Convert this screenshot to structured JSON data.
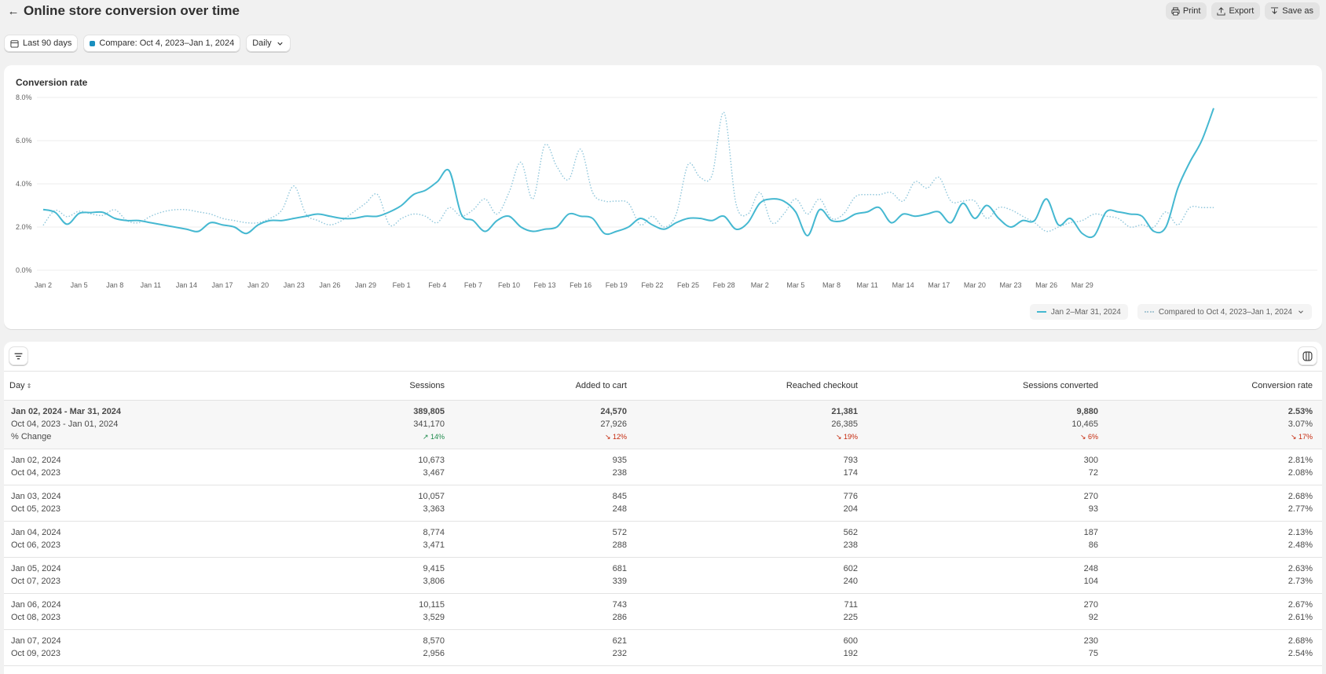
{
  "header": {
    "title": "Online store conversion over time",
    "actions": [
      {
        "label": "Print",
        "icon": "printer-icon"
      },
      {
        "label": "Export",
        "icon": "export-icon"
      },
      {
        "label": "Save as",
        "icon": "save-icon"
      }
    ]
  },
  "filters": {
    "date_range": "Last 90 days",
    "compare": "Compare: Oct 4, 2023–Jan 1, 2024",
    "granularity": "Daily"
  },
  "chart_data": {
    "type": "line",
    "title": "Conversion rate",
    "y_ticks": [
      "0.0%",
      "2.0%",
      "4.0%",
      "6.0%",
      "8.0%"
    ],
    "ylim": [
      0,
      8
    ],
    "x_ticks": [
      "Jan 2",
      "Jan 5",
      "Jan 8",
      "Jan 11",
      "Jan 14",
      "Jan 17",
      "Jan 20",
      "Jan 23",
      "Jan 26",
      "Jan 29",
      "Feb 1",
      "Feb 4",
      "Feb 7",
      "Feb 10",
      "Feb 13",
      "Feb 16",
      "Feb 19",
      "Feb 22",
      "Feb 25",
      "Feb 28",
      "Mar 2",
      "Mar 5",
      "Mar 8",
      "Mar 11",
      "Mar 14",
      "Mar 17",
      "Mar 20",
      "Mar 23",
      "Mar 26",
      "Mar 29"
    ],
    "grid": true,
    "legend_placement": "bottom-right",
    "series": [
      {
        "name": "Jan 2–Mar 31, 2024",
        "color": "#45b8d1",
        "style": "solid",
        "values": [
          2.81,
          2.68,
          2.13,
          2.63,
          2.67,
          2.68,
          2.4,
          2.3,
          2.3,
          2.2,
          2.1,
          2.0,
          1.9,
          1.8,
          2.2,
          2.1,
          2.0,
          1.7,
          2.1,
          2.3,
          2.3,
          2.4,
          2.5,
          2.6,
          2.5,
          2.4,
          2.4,
          2.5,
          2.5,
          2.7,
          3.0,
          3.5,
          3.7,
          4.1,
          4.6,
          2.6,
          2.3,
          1.8,
          2.3,
          2.5,
          2.0,
          1.8,
          1.9,
          2.0,
          2.6,
          2.5,
          2.4,
          1.7,
          1.8,
          2.0,
          2.4,
          2.1,
          1.9,
          2.2,
          2.4,
          2.4,
          2.3,
          2.5,
          1.9,
          2.2,
          3.1,
          3.3,
          3.2,
          2.7,
          1.6,
          2.8,
          2.3,
          2.3,
          2.6,
          2.7,
          2.9,
          2.2,
          2.6,
          2.5,
          2.6,
          2.7,
          2.2,
          3.1,
          2.4,
          3.0,
          2.4,
          2.0,
          2.3,
          2.3,
          3.3,
          2.1,
          2.4,
          1.7,
          1.6,
          2.7,
          2.7,
          2.6,
          2.5,
          1.8,
          2.0,
          3.8,
          5.0,
          6.0,
          7.5
        ]
      },
      {
        "name": "Compared to Oct 4, 2023–Jan 1, 2024",
        "color": "#8fc6db",
        "style": "dotted",
        "values": [
          2.08,
          2.77,
          2.48,
          2.73,
          2.61,
          2.54,
          2.8,
          2.3,
          2.2,
          2.5,
          2.7,
          2.8,
          2.8,
          2.7,
          2.6,
          2.4,
          2.3,
          2.2,
          2.2,
          2.4,
          2.8,
          3.9,
          2.6,
          2.3,
          2.1,
          2.3,
          2.7,
          3.1,
          3.5,
          2.1,
          2.4,
          2.6,
          2.5,
          2.2,
          2.9,
          2.5,
          2.8,
          3.3,
          2.6,
          3.6,
          5.0,
          3.3,
          5.8,
          4.8,
          4.2,
          5.6,
          3.6,
          3.2,
          3.2,
          3.1,
          2.1,
          2.5,
          2.0,
          2.6,
          4.9,
          4.3,
          4.4,
          7.3,
          3.1,
          2.6,
          3.6,
          2.2,
          2.6,
          3.3,
          2.6,
          3.3,
          2.4,
          2.6,
          3.4,
          3.5,
          3.5,
          3.6,
          3.2,
          4.1,
          3.8,
          4.3,
          3.2,
          3.2,
          3.2,
          2.4,
          2.9,
          2.8,
          2.5,
          2.2,
          1.8,
          2.0,
          2.2,
          2.3,
          2.6,
          2.5,
          2.4,
          2.0,
          2.1,
          2.0,
          2.7,
          2.1,
          2.9,
          2.9,
          2.9
        ]
      }
    ]
  },
  "table": {
    "columns": [
      "Day",
      "Sessions",
      "Added to cart",
      "Reached checkout",
      "Sessions converted",
      "Conversion rate"
    ],
    "summary": {
      "labels": [
        "Jan 02, 2024 - Mar 31, 2024",
        "Oct 04, 2023 - Jan 01, 2024",
        "% Change"
      ],
      "current": [
        "389,805",
        "24,570",
        "21,381",
        "9,880",
        "2.53%"
      ],
      "previous": [
        "341,170",
        "27,926",
        "26,385",
        "10,465",
        "3.07%"
      ],
      "change": [
        "↗ 14%",
        "↘ 12%",
        "↘ 19%",
        "↘ 6%",
        "↘ 17%"
      ],
      "change_dir": [
        "up",
        "down",
        "down",
        "down",
        "down"
      ]
    },
    "rows": [
      {
        "d1": "Jan 02, 2024",
        "d2": "Oct 04, 2023",
        "c": [
          "10,673",
          "935",
          "793",
          "300",
          "2.81%"
        ],
        "p": [
          "3,467",
          "238",
          "174",
          "72",
          "2.08%"
        ]
      },
      {
        "d1": "Jan 03, 2024",
        "d2": "Oct 05, 2023",
        "c": [
          "10,057",
          "845",
          "776",
          "270",
          "2.68%"
        ],
        "p": [
          "3,363",
          "248",
          "204",
          "93",
          "2.77%"
        ]
      },
      {
        "d1": "Jan 04, 2024",
        "d2": "Oct 06, 2023",
        "c": [
          "8,774",
          "572",
          "562",
          "187",
          "2.13%"
        ],
        "p": [
          "3,471",
          "288",
          "238",
          "86",
          "2.48%"
        ]
      },
      {
        "d1": "Jan 05, 2024",
        "d2": "Oct 07, 2023",
        "c": [
          "9,415",
          "681",
          "602",
          "248",
          "2.63%"
        ],
        "p": [
          "3,806",
          "339",
          "240",
          "104",
          "2.73%"
        ]
      },
      {
        "d1": "Jan 06, 2024",
        "d2": "Oct 08, 2023",
        "c": [
          "10,115",
          "743",
          "711",
          "270",
          "2.67%"
        ],
        "p": [
          "3,529",
          "286",
          "225",
          "92",
          "2.61%"
        ]
      },
      {
        "d1": "Jan 07, 2024",
        "d2": "Oct 09, 2023",
        "c": [
          "8,570",
          "621",
          "600",
          "230",
          "2.68%"
        ],
        "p": [
          "2,956",
          "232",
          "192",
          "75",
          "2.54%"
        ]
      }
    ]
  }
}
